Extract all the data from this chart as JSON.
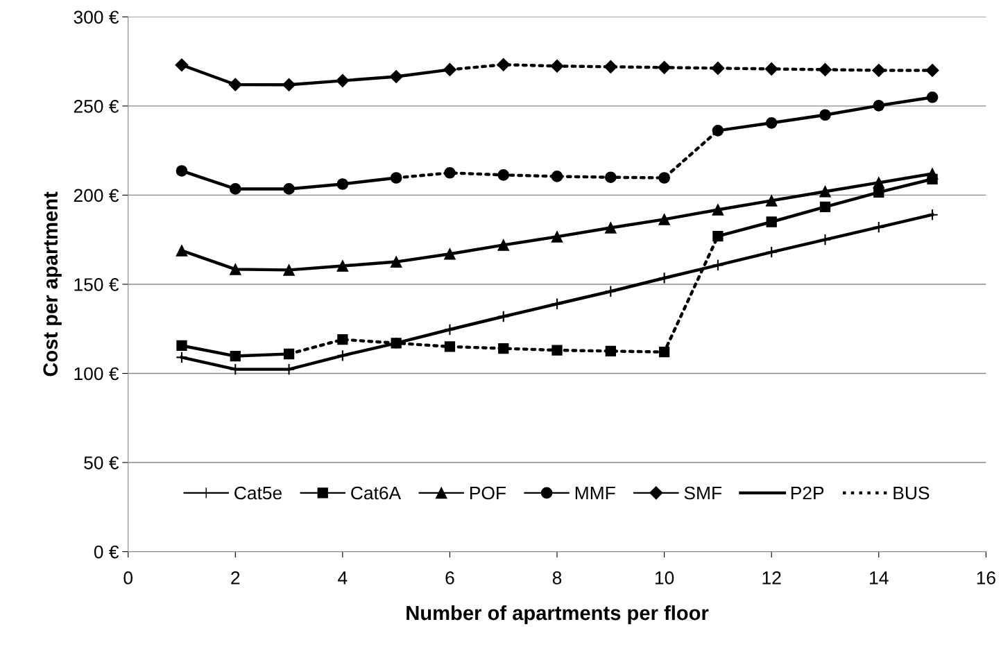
{
  "chart_data": {
    "type": "line",
    "xlabel": "Number of apartments per floor",
    "ylabel": "Cost per apartment",
    "x": [
      1,
      2,
      3,
      4,
      5,
      6,
      7,
      8,
      9,
      10,
      11,
      12,
      13,
      14,
      15
    ],
    "xlim": [
      0,
      16
    ],
    "xticks": [
      0,
      2,
      4,
      6,
      8,
      10,
      12,
      14,
      16
    ],
    "ylim": [
      0,
      300
    ],
    "yticks": [
      {
        "value": 0,
        "label": "0 €"
      },
      {
        "value": 50,
        "label": "50 €"
      },
      {
        "value": 100,
        "label": "100 €"
      },
      {
        "value": 150,
        "label": "150 €"
      },
      {
        "value": 200,
        "label": "200 €"
      },
      {
        "value": 250,
        "label": "250 €"
      },
      {
        "value": 300,
        "label": "300 €"
      }
    ],
    "grid": "y",
    "legend": "bottom",
    "series": [
      {
        "name": "Cat5e",
        "color": "#000000",
        "marker": "cross",
        "line_style": [
          "solid",
          "solid",
          "solid",
          "solid",
          "solid",
          "solid",
          "solid",
          "solid",
          "solid",
          "solid",
          "solid",
          "solid",
          "solid",
          "solid"
        ],
        "values": [
          109,
          102.3,
          102.3,
          110,
          117,
          124.6,
          131.9,
          139,
          146,
          153.5,
          160.7,
          168,
          175,
          182,
          189
        ]
      },
      {
        "name": "Cat6A",
        "color": "#000000",
        "marker": "square",
        "line_style": [
          "solid",
          "solid",
          "dotted",
          "dotted",
          "dotted",
          "dotted",
          "dotted",
          "dotted",
          "dotted",
          "dotted",
          "solid",
          "solid",
          "solid",
          "solid"
        ],
        "values": [
          115.6,
          109.7,
          110.9,
          119,
          117,
          115,
          114,
          113,
          112.5,
          112,
          177,
          185,
          193.4,
          201.6,
          209
        ]
      },
      {
        "name": "POF",
        "color": "#000000",
        "marker": "triangle",
        "line_style": [
          "solid",
          "solid",
          "solid",
          "solid",
          "solid",
          "solid",
          "solid",
          "solid",
          "solid",
          "solid",
          "solid",
          "solid",
          "solid",
          "solid"
        ],
        "values": [
          168.9,
          158.4,
          158,
          160.3,
          162.6,
          167,
          172,
          176.7,
          181.7,
          186.4,
          191.8,
          196.9,
          202,
          207,
          212
        ]
      },
      {
        "name": "MMF",
        "color": "#000000",
        "marker": "circle",
        "line_style": [
          "solid",
          "solid",
          "solid",
          "solid",
          "dotted",
          "dotted",
          "dotted",
          "dotted",
          "dotted",
          "dotted",
          "solid",
          "solid",
          "solid",
          "solid"
        ],
        "values": [
          213.6,
          203.5,
          203.5,
          206.2,
          209.7,
          212.5,
          211.3,
          210.5,
          210,
          209.7,
          236.2,
          240.5,
          245,
          250.2,
          254.9
        ]
      },
      {
        "name": "SMF",
        "color": "#000000",
        "marker": "diamond",
        "line_style": [
          "solid",
          "solid",
          "solid",
          "solid",
          "solid",
          "dotted",
          "dotted",
          "dotted",
          "dotted",
          "dotted",
          "dotted",
          "dotted",
          "dotted",
          "dotted"
        ],
        "values": [
          273,
          262,
          261.9,
          264.2,
          266.5,
          270.4,
          273.2,
          272.4,
          272,
          271.6,
          271.2,
          270.8,
          270.4,
          270,
          270
        ]
      },
      {
        "name": "P2P",
        "color": "#000000",
        "marker": "none",
        "line_style": "solid",
        "values": [
          null,
          null,
          null,
          null,
          null,
          null,
          null,
          null,
          null,
          null,
          null,
          null,
          null,
          null,
          null
        ]
      },
      {
        "name": "BUS",
        "color": "#000000",
        "marker": "none",
        "line_style": "dotted",
        "values": [
          null,
          null,
          null,
          null,
          null,
          null,
          null,
          null,
          null,
          null,
          null,
          null,
          null,
          null,
          null
        ]
      }
    ]
  }
}
